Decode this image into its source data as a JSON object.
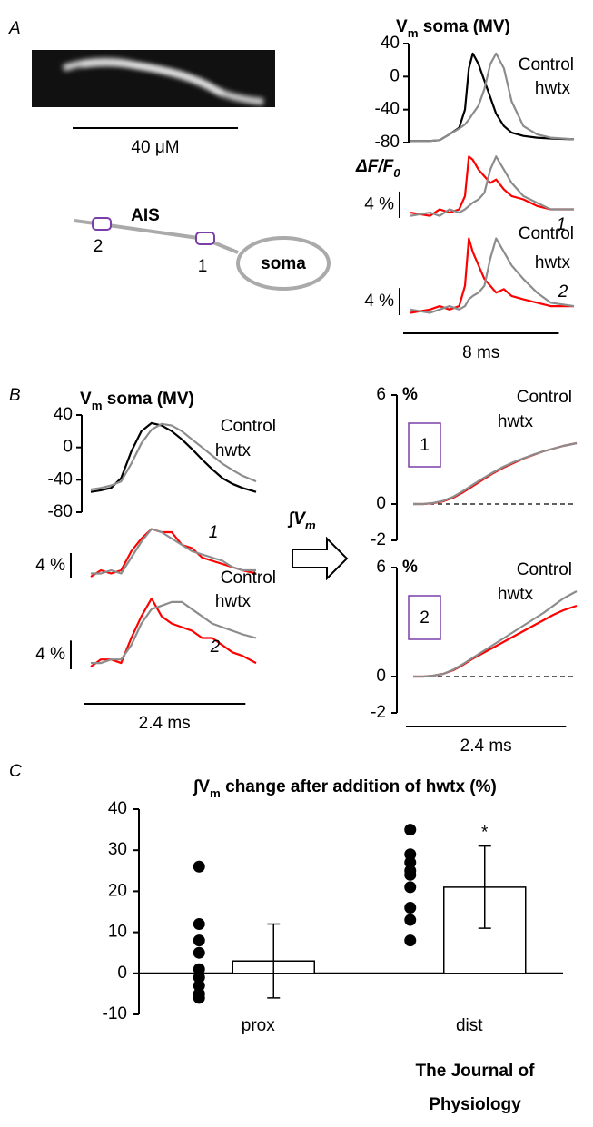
{
  "panels": [
    "A",
    "B",
    "C"
  ],
  "image": {
    "scalebar": "40 μM"
  },
  "diagram": {
    "region_label": "AIS",
    "soma_label": "soma",
    "sites": [
      "2",
      "1"
    ]
  },
  "transform_label": [
    "∫V",
    "m"
  ],
  "journal": {
    "line1": "The Journal of",
    "line2": "Physiology"
  },
  "chart_data": [
    {
      "type": "line",
      "title_parts": [
        "V",
        "m",
        " soma (MV)"
      ],
      "x": [
        0,
        1,
        1.5,
        2,
        2.5,
        2.8,
        3.0,
        3.2,
        3.5,
        3.8,
        4.1,
        4.4,
        4.8,
        5.2,
        5.8,
        6.5,
        7.2,
        8.4
      ],
      "xlim": [
        0,
        8.4
      ],
      "ylim": [
        -80,
        40
      ],
      "yticks": [
        40,
        0,
        -40,
        -80
      ],
      "series": [
        {
          "name": "Control",
          "color": "#000000",
          "values": [
            -78,
            -78,
            -77,
            -70,
            -62,
            -40,
            10,
            28,
            15,
            -5,
            -25,
            -45,
            -60,
            -68,
            -72,
            -74,
            -75,
            -76
          ]
        },
        {
          "name": "hwtx",
          "color": "#8c8c8c",
          "values": [
            -78,
            -78,
            -77,
            -70,
            -63,
            -58,
            -52,
            -45,
            -35,
            -15,
            15,
            28,
            10,
            -30,
            -60,
            -70,
            -74,
            -76
          ]
        }
      ]
    },
    {
      "type": "line",
      "ylabel_parts": [
        "ΔF/F",
        "0"
      ],
      "site_label": "1",
      "scalebar_y": {
        "value": 4,
        "label": "4 %"
      },
      "x": [
        0,
        1,
        1.5,
        2,
        2.5,
        2.8,
        3.0,
        3.2,
        3.5,
        3.8,
        4.1,
        4.4,
        4.8,
        5.2,
        5.8,
        6.5,
        7.2,
        8.4
      ],
      "xlim": [
        0,
        8.4
      ],
      "ylim": [
        -1,
        10
      ],
      "series": [
        {
          "color": "#ff0000",
          "values": [
            0.5,
            0,
            1,
            0.5,
            1,
            3,
            9,
            8.5,
            7,
            6,
            5,
            5.5,
            4,
            3,
            2.5,
            1.5,
            1,
            1
          ]
        },
        {
          "color": "#8c8c8c",
          "values": [
            0,
            0.5,
            0,
            1,
            0.5,
            1,
            1.5,
            2,
            2.5,
            3.5,
            7,
            9,
            7,
            5,
            3,
            2,
            1,
            1
          ]
        }
      ]
    },
    {
      "type": "line",
      "site_label": "2",
      "scalebar_y": {
        "value": 4,
        "label": "4 %"
      },
      "scalebar_x": {
        "value": 8,
        "label": "8 ms"
      },
      "x": [
        0,
        1,
        1.5,
        2,
        2.5,
        2.8,
        3.0,
        3.2,
        3.5,
        3.8,
        4.1,
        4.4,
        4.8,
        5.2,
        5.8,
        6.5,
        7.2,
        8.4
      ],
      "xlim": [
        0,
        8.4
      ],
      "ylim": [
        -1,
        12
      ],
      "series": [
        {
          "name": "Control",
          "color": "#ff0000",
          "values": [
            0,
            0.5,
            1,
            0.5,
            1,
            4,
            11,
            9,
            7,
            5,
            4,
            3,
            3.5,
            2.5,
            2,
            1.5,
            1,
            1
          ]
        },
        {
          "name": "hwtx",
          "color": "#8c8c8c",
          "values": [
            0.5,
            0,
            0.5,
            1,
            0.5,
            1,
            2,
            2.5,
            3,
            4,
            8,
            11,
            9,
            7,
            5,
            3,
            1.5,
            1
          ]
        }
      ]
    },
    {
      "type": "line",
      "title_parts": [
        "V",
        "m",
        " soma (MV)"
      ],
      "x": [
        0,
        0.15,
        0.3,
        0.45,
        0.6,
        0.75,
        0.9,
        1.05,
        1.2,
        1.35,
        1.5,
        1.65,
        1.8,
        1.95,
        2.1,
        2.25,
        2.45
      ],
      "xlim": [
        0,
        2.45
      ],
      "ylim": [
        -80,
        40
      ],
      "yticks": [
        40,
        0,
        -40,
        -80
      ],
      "series": [
        {
          "name": "Control",
          "color": "#000000",
          "values": [
            -55,
            -53,
            -50,
            -38,
            -5,
            20,
            30,
            27,
            20,
            10,
            -2,
            -15,
            -27,
            -38,
            -45,
            -50,
            -55
          ]
        },
        {
          "name": "hwtx",
          "color": "#8c8c8c",
          "values": [
            -52,
            -50,
            -47,
            -42,
            -20,
            5,
            22,
            29,
            27,
            20,
            10,
            0,
            -10,
            -20,
            -28,
            -35,
            -42
          ]
        }
      ]
    },
    {
      "type": "line",
      "site_label": "1",
      "scalebar_y": {
        "value": 4,
        "label": "4 %"
      },
      "x": [
        0,
        0.15,
        0.3,
        0.45,
        0.6,
        0.75,
        0.9,
        1.05,
        1.2,
        1.35,
        1.5,
        1.65,
        1.8,
        1.95,
        2.1,
        2.25,
        2.45
      ],
      "xlim": [
        0,
        2.45
      ],
      "ylim": [
        -1,
        9
      ],
      "series": [
        {
          "color": "#ff0000",
          "values": [
            0,
            1,
            0.5,
            1,
            4,
            6,
            7.5,
            7,
            7,
            5,
            4.5,
            3,
            2.5,
            2,
            1.5,
            1,
            0.5
          ]
        },
        {
          "color": "#8c8c8c",
          "values": [
            0.5,
            0.5,
            1,
            0.5,
            3,
            5.5,
            7.5,
            7,
            6,
            5,
            4,
            3.5,
            3,
            2.5,
            1.5,
            1,
            1
          ]
        }
      ]
    },
    {
      "type": "line",
      "site_label": "2",
      "scalebar_y": {
        "value": 4,
        "label": "4 %"
      },
      "scalebar_x": {
        "value": 2.4,
        "label": "2.4 ms"
      },
      "x": [
        0,
        0.15,
        0.3,
        0.45,
        0.6,
        0.75,
        0.9,
        1.05,
        1.2,
        1.35,
        1.5,
        1.65,
        1.8,
        1.95,
        2.1,
        2.25,
        2.45
      ],
      "xlim": [
        0,
        2.45
      ],
      "ylim": [
        -1,
        10
      ],
      "series": [
        {
          "name": "Control",
          "color": "#ff0000",
          "values": [
            0,
            1,
            1,
            0.5,
            4,
            7,
            9.5,
            7,
            6,
            5.5,
            5,
            4,
            4,
            3,
            2,
            1.5,
            0.5
          ]
        },
        {
          "name": "hwtx",
          "color": "#8c8c8c",
          "values": [
            0.5,
            0.5,
            1,
            1,
            3,
            6,
            8,
            8.5,
            9,
            9,
            8,
            7,
            6,
            5.5,
            5,
            4.5,
            4
          ]
        }
      ]
    },
    {
      "type": "line",
      "yunit": "%",
      "box_label": "1",
      "reference_line": 0,
      "x": [
        0,
        0.15,
        0.3,
        0.45,
        0.6,
        0.75,
        0.9,
        1.05,
        1.2,
        1.35,
        1.5,
        1.65,
        1.8,
        1.95,
        2.1,
        2.25,
        2.45
      ],
      "xlim": [
        0,
        2.45
      ],
      "ylim": [
        -2,
        6
      ],
      "yticks": [
        6,
        0,
        -2
      ],
      "series": [
        {
          "name": "Control",
          "color": "#ff0000",
          "values": [
            0,
            0,
            0.05,
            0.15,
            0.35,
            0.65,
            1.0,
            1.35,
            1.7,
            2.0,
            2.25,
            2.5,
            2.7,
            2.9,
            3.05,
            3.2,
            3.35
          ]
        },
        {
          "name": "hwtx",
          "color": "#8c8c8c",
          "values": [
            0,
            0,
            0.06,
            0.18,
            0.4,
            0.72,
            1.08,
            1.42,
            1.75,
            2.05,
            2.3,
            2.52,
            2.72,
            2.9,
            3.05,
            3.2,
            3.35
          ]
        }
      ]
    },
    {
      "type": "line",
      "yunit": "%",
      "box_label": "2",
      "reference_line": 0,
      "scalebar_x": {
        "value": 2.4,
        "label": "2.4 ms"
      },
      "x": [
        0,
        0.15,
        0.3,
        0.45,
        0.6,
        0.75,
        0.9,
        1.05,
        1.2,
        1.35,
        1.5,
        1.65,
        1.8,
        1.95,
        2.1,
        2.25,
        2.45
      ],
      "xlim": [
        0,
        2.45
      ],
      "ylim": [
        -2,
        6
      ],
      "yticks": [
        6,
        0,
        -2
      ],
      "series": [
        {
          "name": "Control",
          "color": "#ff0000",
          "values": [
            0,
            0,
            0.05,
            0.15,
            0.35,
            0.65,
            1.0,
            1.3,
            1.6,
            1.9,
            2.2,
            2.5,
            2.8,
            3.1,
            3.4,
            3.65,
            3.9
          ]
        },
        {
          "name": "hwtx",
          "color": "#8c8c8c",
          "values": [
            0,
            0,
            0.05,
            0.15,
            0.38,
            0.7,
            1.05,
            1.4,
            1.75,
            2.1,
            2.45,
            2.8,
            3.15,
            3.5,
            3.9,
            4.3,
            4.7
          ]
        }
      ]
    },
    {
      "type": "bar",
      "title_parts": [
        "∫V",
        "m",
        " change after addition of hwtx (%)"
      ],
      "categories": [
        "prox",
        "dist"
      ],
      "values": [
        3,
        21
      ],
      "errors": [
        9,
        10
      ],
      "color": "#ffffff",
      "points": [
        [
          26,
          12,
          8,
          5,
          1,
          -1,
          -3,
          -5,
          -6
        ],
        [
          35,
          29,
          27,
          25,
          24,
          21,
          16,
          13,
          8
        ]
      ],
      "annotation": "*",
      "ylim": [
        -10,
        40
      ],
      "yticks": [
        -10,
        0,
        10,
        20,
        30,
        40
      ]
    }
  ]
}
